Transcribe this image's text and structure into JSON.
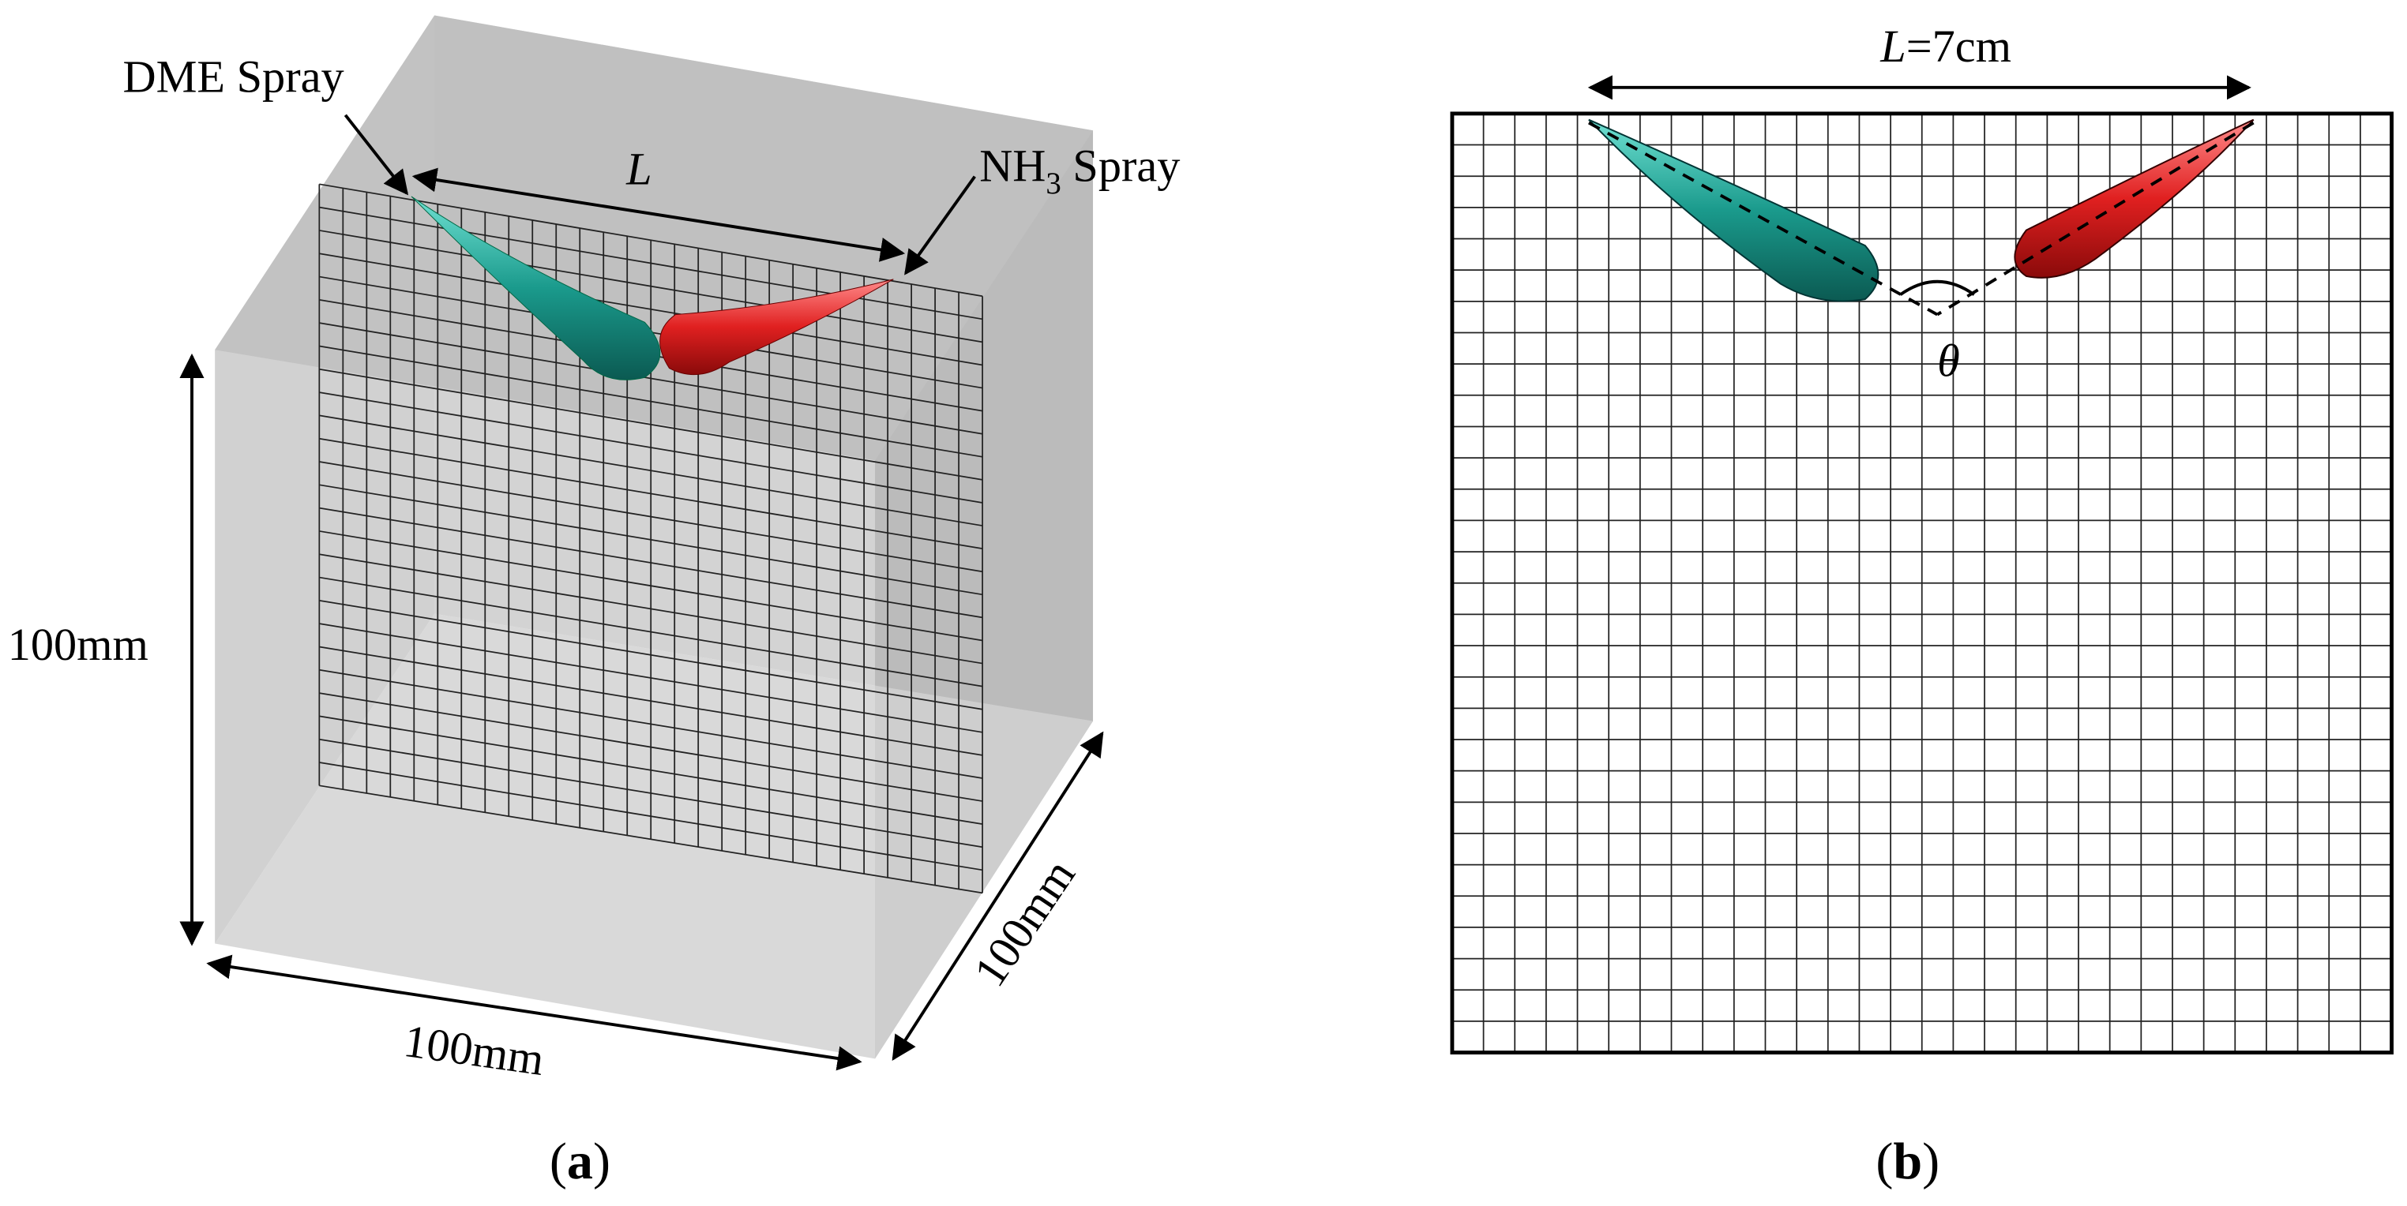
{
  "panel_a": {
    "dme_label": "DME Spray",
    "nh3_label": {
      "base": "NH",
      "sub": "3",
      "rest": " Spray"
    },
    "length_label": "L",
    "height_label": "100mm",
    "width_label": "100mm",
    "depth_label": "100mm",
    "caption": {
      "open": "(",
      "letter": "a",
      "close": ")"
    }
  },
  "panel_b": {
    "length_label": {
      "var": "L",
      "rest": "=7cm"
    },
    "angle_label": "θ",
    "caption": {
      "open": "(",
      "letter": "b",
      "close": ")"
    }
  }
}
